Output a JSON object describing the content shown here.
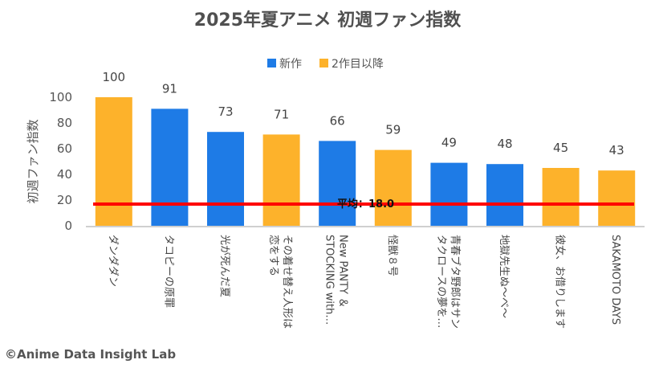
{
  "chart_data": {
    "type": "bar",
    "title": "2025年夏アニメ 初週ファン指数",
    "xlabel": "",
    "ylabel": "初週ファン指数",
    "ylim": [
      0,
      100
    ],
    "yticks": [
      0,
      20,
      40,
      60,
      80,
      100
    ],
    "grid": false,
    "legend_position": "top-center",
    "categories": [
      "ダンダダン",
      "タコピーの原罪",
      "光が死んだ夏",
      "その着せ替え人形は恋をする",
      "New PANTY & STOCKING with…",
      "怪獣８号",
      "青春ブタ野郎はサンタクロースの夢を…",
      "地獄先生ぬ～べ～",
      "彼女、お借りします",
      "SAKAMOTO DAYS"
    ],
    "category_lines": [
      [
        "ダンダダン"
      ],
      [
        "タコピーの原罪"
      ],
      [
        "光が死んだ夏"
      ],
      [
        "その着せ替え人形は",
        "恋をする"
      ],
      [
        "New PANTY ＆",
        "STOCKING with…"
      ],
      [
        "怪獣８号"
      ],
      [
        "青春ブタ野郎はサン",
        "タクロースの夢を…"
      ],
      [
        "地獄先生ぬ～べ～"
      ],
      [
        "彼女、お借りします"
      ],
      [
        "SAKAMOTO DAYS"
      ]
    ],
    "values": [
      100,
      91,
      73,
      71,
      66,
      59,
      49,
      48,
      45,
      43
    ],
    "series_type": [
      "2作目以降",
      "新作",
      "新作",
      "2作目以降",
      "新作",
      "2作目以降",
      "新作",
      "新作",
      "2作目以降",
      "2作目以降"
    ],
    "legend": [
      {
        "name": "新作",
        "color": "#1E7BE6"
      },
      {
        "name": "2作目以降",
        "color": "#FDB22B"
      }
    ],
    "reference_line": {
      "value": 18.0,
      "label": "平均：18.0",
      "color": "#FF0000"
    }
  },
  "footer": {
    "credit": "©Anime Data Insight Lab"
  }
}
